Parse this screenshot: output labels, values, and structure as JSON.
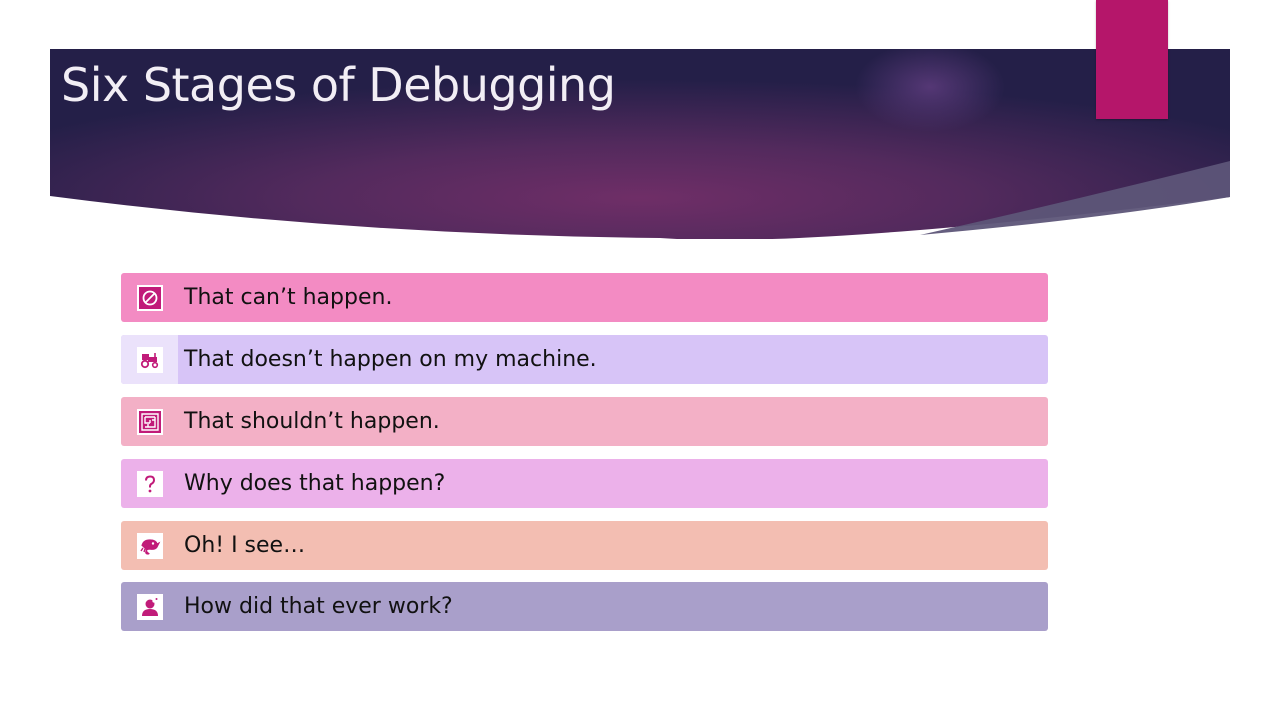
{
  "slide": {
    "title": "Six Stages of Debugging"
  },
  "stages": [
    {
      "label": "That can’t happen.",
      "icon": "prohibited-icon"
    },
    {
      "label": "That doesn’t happen on my machine.",
      "icon": "tractor-icon"
    },
    {
      "label": "That shouldn’t happen.",
      "icon": "maze-icon"
    },
    {
      "label": "Why does that happen?",
      "icon": "question-mark-icon"
    },
    {
      "label": "Oh! I see…",
      "icon": "chameleon-icon"
    },
    {
      "label": "How did that ever work?",
      "icon": "person-thinking-icon"
    }
  ],
  "colors": {
    "banner_dark": "#241f48",
    "banner_mid": "#6b2e63",
    "accent_tab": "#b5166a",
    "icon_color": "#c11b79",
    "stage_1": "#f38bc3",
    "stage_2": "#d7c4f7",
    "stage_3": "#f3b0c6",
    "stage_4": "#ecb1ea",
    "stage_5": "#f3beb2",
    "stage_6": "#a99fca"
  }
}
